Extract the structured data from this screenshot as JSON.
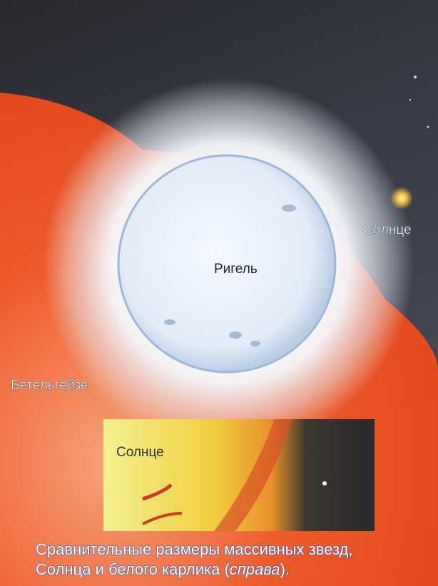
{
  "labels": {
    "sun": "Солнце",
    "rigel": "Ригель",
    "betelgeuse": "Бетельгейзе",
    "inset_sun": "Солнце"
  },
  "caption": {
    "line1": "Сравнительные размеры массивных звезд,",
    "line2_start": "Солнца и белого карлика (",
    "line2_italic": "справа",
    "line2_end": ")."
  }
}
